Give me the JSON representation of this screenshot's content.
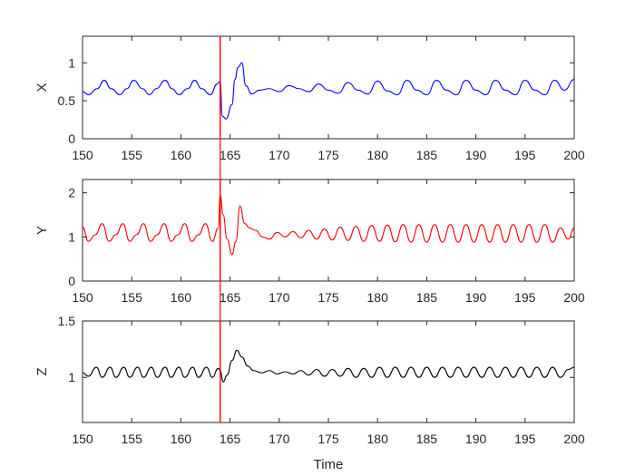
{
  "chart_data": [
    {
      "type": "line",
      "ylabel": "X",
      "xlim": [
        150,
        200
      ],
      "ylim": [
        0,
        1.35
      ],
      "x_ticks": [
        150,
        155,
        160,
        165,
        170,
        175,
        180,
        185,
        190,
        195,
        200
      ],
      "x_tick_labels": [
        "150",
        "155",
        "160",
        "165",
        "170",
        "175",
        "180",
        "185",
        "190",
        "195",
        "200"
      ],
      "y_ticks": [
        0,
        0.5,
        1
      ],
      "y_tick_labels": [
        "0",
        "0.5",
        "1"
      ],
      "color": "#0000ff",
      "series": [
        {
          "x": [
            150,
            150.6,
            151.5,
            152.2,
            152.9,
            153.8,
            154.5,
            155.2,
            156.1,
            156.8,
            157.5,
            158.4,
            159.1,
            159.8,
            160.7,
            161.4,
            162.1,
            163.0,
            163.7,
            164.0,
            164.2,
            164.6,
            165.2,
            165.5,
            165.8,
            166.2,
            166.6,
            167.2,
            168.0,
            169.0,
            170.0,
            171.0,
            172.0,
            173.0,
            174.0,
            175.0,
            176.0,
            177.0,
            178.0,
            179.0,
            180.0,
            181.0,
            182.0,
            183.0,
            184.0,
            185.0,
            186.0,
            187.0,
            188.0,
            189.0,
            190.0,
            191.0,
            192.0,
            193.0,
            194.0,
            195.0,
            196.0,
            197.0,
            198.0,
            199.0,
            200.0
          ],
          "y": [
            0.62,
            0.58,
            0.66,
            0.77,
            0.66,
            0.58,
            0.66,
            0.77,
            0.66,
            0.58,
            0.66,
            0.77,
            0.66,
            0.58,
            0.66,
            0.77,
            0.66,
            0.58,
            0.72,
            0.76,
            0.3,
            0.26,
            0.45,
            0.78,
            0.94,
            1.0,
            0.7,
            0.59,
            0.64,
            0.66,
            0.62,
            0.7,
            0.66,
            0.62,
            0.72,
            0.64,
            0.6,
            0.74,
            0.64,
            0.59,
            0.76,
            0.63,
            0.58,
            0.77,
            0.64,
            0.58,
            0.77,
            0.64,
            0.58,
            0.77,
            0.64,
            0.58,
            0.77,
            0.64,
            0.58,
            0.77,
            0.64,
            0.58,
            0.77,
            0.64,
            0.78
          ]
        }
      ]
    },
    {
      "type": "line",
      "ylabel": "Y",
      "xlim": [
        150,
        200
      ],
      "ylim": [
        0,
        2.3
      ],
      "x_ticks": [
        150,
        155,
        160,
        165,
        170,
        175,
        180,
        185,
        190,
        195,
        200
      ],
      "x_tick_labels": [
        "150",
        "155",
        "160",
        "165",
        "170",
        "175",
        "180",
        "185",
        "190",
        "195",
        "200"
      ],
      "y_ticks": [
        0,
        1,
        2
      ],
      "y_tick_labels": [
        "0",
        "1",
        "2"
      ],
      "color": "#ff0000",
      "series": [
        {
          "x": [
            150,
            150.6,
            151.3,
            152.0,
            152.7,
            153.4,
            154.1,
            154.8,
            155.5,
            156.2,
            156.9,
            157.6,
            158.3,
            159.0,
            159.7,
            160.4,
            161.1,
            161.8,
            162.5,
            163.2,
            163.8,
            164.0,
            164.3,
            164.7,
            165.2,
            165.6,
            166.0,
            166.5,
            167.0,
            167.6,
            168.3,
            169.0,
            169.8,
            170.6,
            171.4,
            172.2,
            173.0,
            173.8,
            174.6,
            175.4,
            176.2,
            177.0,
            177.8,
            178.6,
            179.4,
            180.2,
            181.0,
            181.8,
            182.6,
            183.4,
            184.2,
            185.0,
            185.8,
            186.6,
            187.4,
            188.2,
            189.0,
            189.8,
            190.6,
            191.4,
            192.2,
            193.0,
            193.8,
            194.6,
            195.4,
            196.2,
            197.0,
            197.8,
            198.6,
            199.4,
            200.0
          ],
          "y": [
            1.22,
            0.9,
            1.05,
            1.3,
            0.9,
            1.05,
            1.3,
            0.9,
            1.05,
            1.3,
            0.9,
            1.05,
            1.3,
            0.9,
            1.05,
            1.3,
            0.9,
            1.05,
            1.3,
            0.9,
            1.2,
            1.95,
            1.5,
            0.95,
            0.6,
            0.9,
            1.7,
            1.3,
            1.2,
            1.15,
            1.0,
            0.95,
            1.1,
            1.0,
            1.12,
            0.98,
            1.15,
            0.95,
            1.18,
            0.93,
            1.22,
            0.92,
            1.24,
            0.9,
            1.26,
            0.9,
            1.27,
            0.89,
            1.28,
            0.88,
            1.28,
            0.88,
            1.28,
            0.88,
            1.28,
            0.88,
            1.28,
            0.88,
            1.28,
            0.88,
            1.28,
            0.88,
            1.28,
            0.88,
            1.28,
            0.88,
            1.28,
            0.88,
            1.2,
            0.95,
            1.2
          ]
        }
      ]
    },
    {
      "type": "line",
      "ylabel": "Z",
      "xlabel": "Time",
      "xlim": [
        150,
        200
      ],
      "ylim": [
        0.6,
        1.5
      ],
      "x_ticks": [
        150,
        155,
        160,
        165,
        170,
        175,
        180,
        185,
        190,
        195,
        200
      ],
      "x_tick_labels": [
        "150",
        "155",
        "160",
        "165",
        "170",
        "175",
        "180",
        "185",
        "190",
        "195",
        "200"
      ],
      "y_ticks": [
        1,
        1.5
      ],
      "y_tick_labels": [
        "1",
        "1.5"
      ],
      "color": "#000000",
      "series": [
        {
          "x": [
            150,
            150.6,
            151.4,
            152.0,
            152.8,
            153.4,
            154.2,
            154.8,
            155.6,
            156.2,
            157.0,
            157.6,
            158.4,
            159.0,
            159.8,
            160.4,
            161.2,
            161.8,
            162.6,
            163.2,
            163.8,
            164.0,
            164.3,
            164.7,
            165.2,
            165.7,
            166.2,
            166.8,
            167.4,
            168.2,
            169.0,
            169.8,
            170.6,
            171.4,
            172.2,
            173.0,
            173.8,
            174.6,
            175.4,
            176.2,
            177.0,
            177.8,
            178.6,
            179.4,
            180.2,
            181.0,
            181.8,
            182.6,
            183.4,
            184.2,
            185.0,
            185.8,
            186.6,
            187.4,
            188.2,
            189.0,
            189.8,
            190.6,
            191.4,
            192.2,
            193.0,
            193.8,
            194.6,
            195.4,
            196.2,
            197.0,
            197.8,
            198.6,
            199.4,
            200.0
          ],
          "y": [
            1.04,
            1.01,
            1.09,
            1.0,
            1.09,
            1.0,
            1.09,
            1.0,
            1.09,
            1.0,
            1.09,
            1.0,
            1.09,
            1.0,
            1.09,
            1.0,
            1.09,
            1.0,
            1.09,
            1.0,
            1.08,
            1.06,
            0.96,
            1.02,
            1.15,
            1.24,
            1.18,
            1.1,
            1.06,
            1.04,
            1.06,
            1.03,
            1.05,
            1.03,
            1.06,
            1.02,
            1.07,
            1.01,
            1.07,
            1.01,
            1.08,
            1.0,
            1.08,
            1.0,
            1.09,
            1.0,
            1.09,
            1.0,
            1.09,
            1.0,
            1.09,
            1.0,
            1.09,
            1.0,
            1.09,
            1.0,
            1.09,
            1.0,
            1.09,
            1.0,
            1.09,
            1.0,
            1.09,
            1.0,
            1.09,
            1.0,
            1.09,
            1.0,
            1.07,
            1.09
          ]
        }
      ]
    }
  ],
  "marker_line": {
    "x": 164,
    "color": "#ff0000"
  }
}
